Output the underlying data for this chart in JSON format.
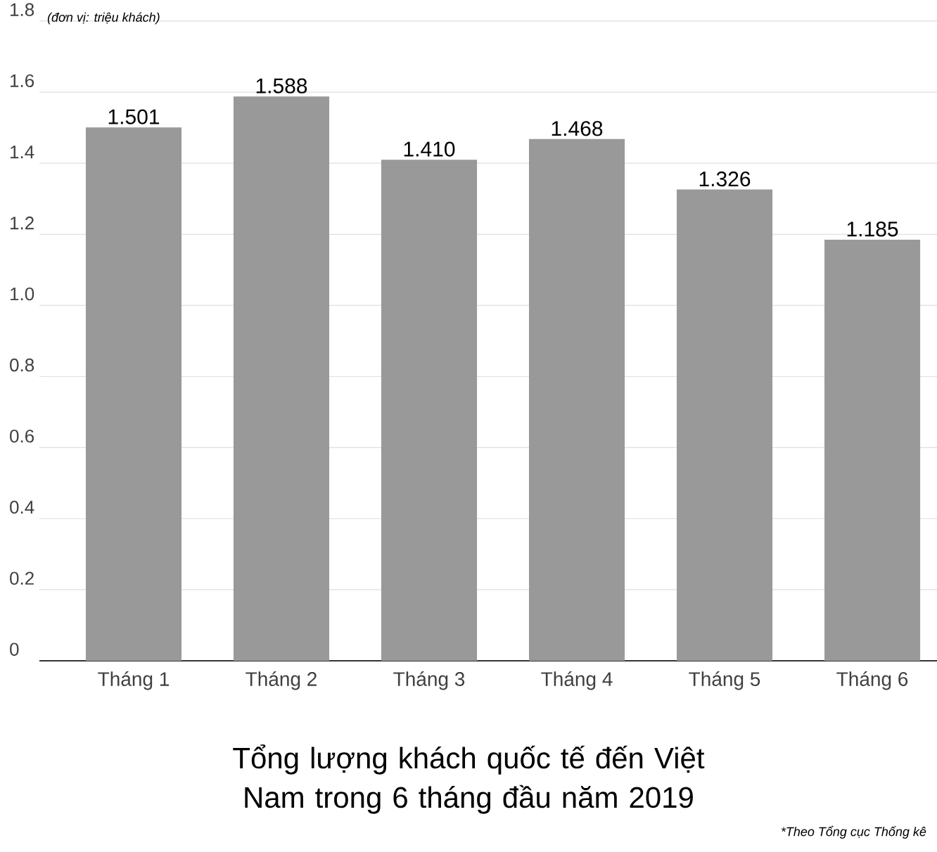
{
  "chart_data": {
    "type": "bar",
    "title": "Tổng lượng khách quốc tế đến Việt Nam trong 6 tháng đầu năm 2019",
    "categories": [
      "Tháng 1",
      "Tháng 2",
      "Tháng 3",
      "Tháng 4",
      "Tháng 5",
      "Tháng 6"
    ],
    "values": [
      1.501,
      1.588,
      1.41,
      1.468,
      1.326,
      1.185
    ],
    "color": "#999999",
    "ylim": [
      0,
      1.8
    ],
    "yticks": [
      0,
      0.2,
      0.4,
      0.6,
      0.8,
      {
        "value": 1,
        "label": "1.0"
      },
      1.2,
      1.4,
      1.6,
      1.8
    ],
    "grid": "y",
    "value_labels": [
      "1.501",
      "1.588",
      "1.410",
      "1.468",
      "1.326",
      "1.185"
    ],
    "annotations": [
      "(đơn vị: triệu khách)",
      "*Theo Tổng cục Thống kê"
    ]
  }
}
